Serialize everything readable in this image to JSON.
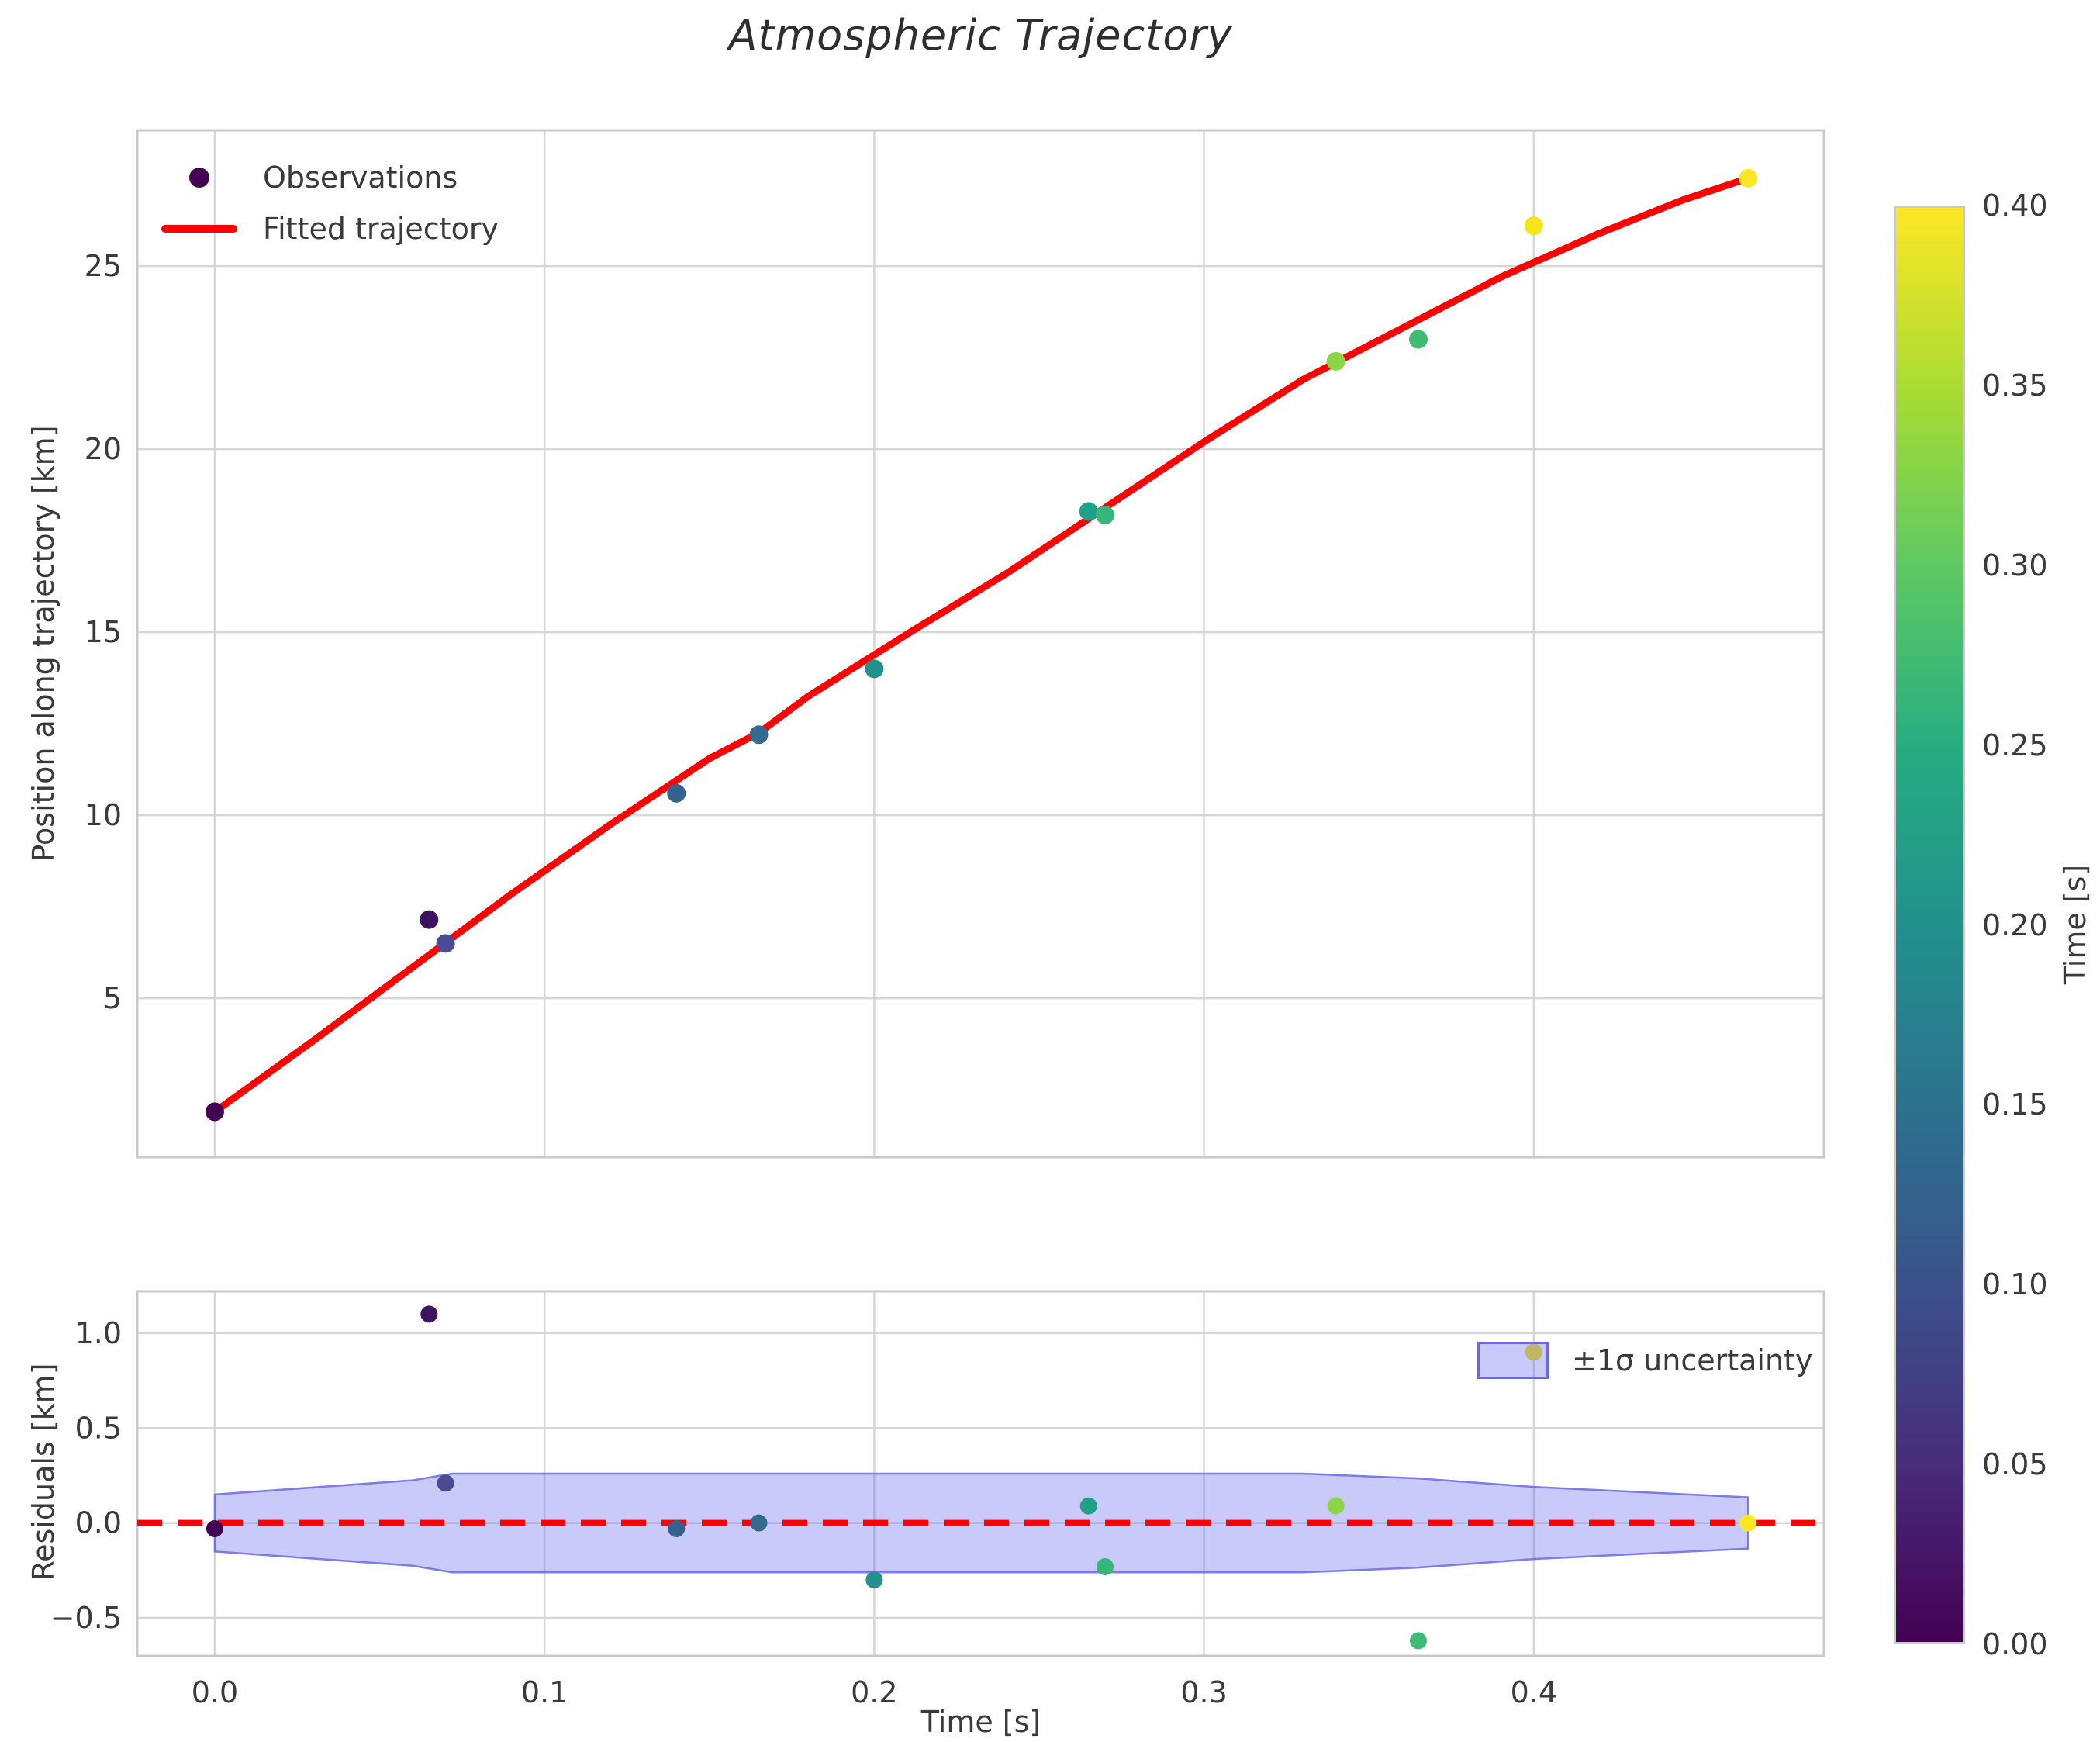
{
  "title": "Atmospheric Trajectory",
  "colors": {
    "fitted_line": "#ff0000",
    "band_fill": "#5a5af0",
    "band_edge": "#6868e8",
    "grid": "#d7d7d7",
    "spine": "#c9c9c9",
    "text": "#3a3a3a"
  },
  "chart_data": [
    {
      "id": "trajectory",
      "type": "scatter",
      "ylabel": "Position along trajectory [km]",
      "xlim": [
        -0.0235,
        0.488
      ],
      "ylim": [
        0.66,
        28.71
      ],
      "x_ticks": [
        0.0,
        0.1,
        0.2,
        0.3,
        0.4
      ],
      "x_tick_labels": [
        "0.0",
        "0.1",
        "0.2",
        "0.3",
        "0.4"
      ],
      "y_ticks": [
        5,
        10,
        15,
        20,
        25
      ],
      "y_tick_labels": [
        "5",
        "10",
        "15",
        "20",
        "25"
      ],
      "grid": true,
      "legend_position": "upper left",
      "legend": {
        "observations": "Observations",
        "fitted": "Fitted trajectory"
      },
      "observations": [
        {
          "t": 0.0,
          "position": 1.9,
          "color": "#440154"
        },
        {
          "t": 0.065,
          "position": 7.15,
          "color": "#3c1361"
        },
        {
          "t": 0.07,
          "position": 6.5,
          "color": "#4a4b93"
        },
        {
          "t": 0.14,
          "position": 10.6,
          "color": "#34618d"
        },
        {
          "t": 0.165,
          "position": 12.2,
          "color": "#336a8e"
        },
        {
          "t": 0.2,
          "position": 14.0,
          "color": "#23928c"
        },
        {
          "t": 0.265,
          "position": 18.3,
          "color": "#1fa088"
        },
        {
          "t": 0.27,
          "position": 18.2,
          "color": "#35b779"
        },
        {
          "t": 0.34,
          "position": 22.4,
          "color": "#8bd646"
        },
        {
          "t": 0.365,
          "position": 23.0,
          "color": "#3fbc73"
        },
        {
          "t": 0.4,
          "position": 26.1,
          "color": "#f2e51e"
        },
        {
          "t": 0.465,
          "position": 27.4,
          "color": "#fde725"
        }
      ],
      "fitted_curve": [
        [
          0.0,
          1.9
        ],
        [
          0.03,
          3.85
        ],
        [
          0.06,
          5.85
        ],
        [
          0.09,
          7.85
        ],
        [
          0.12,
          9.75
        ],
        [
          0.15,
          11.55
        ],
        [
          0.165,
          12.25
        ],
        [
          0.18,
          13.25
        ],
        [
          0.21,
          14.95
        ],
        [
          0.24,
          16.6
        ],
        [
          0.27,
          18.4
        ],
        [
          0.3,
          20.2
        ],
        [
          0.33,
          21.9
        ],
        [
          0.36,
          23.3
        ],
        [
          0.39,
          24.7
        ],
        [
          0.42,
          25.9
        ],
        [
          0.445,
          26.8
        ],
        [
          0.465,
          27.4
        ]
      ]
    },
    {
      "id": "residuals",
      "type": "scatter",
      "xlabel": "Time [s]",
      "ylabel": "Residuals [km]",
      "xlim": [
        -0.0235,
        0.488
      ],
      "ylim": [
        -0.7,
        1.22
      ],
      "y_ticks": [
        1.0,
        0.5,
        0.0,
        -0.5
      ],
      "y_tick_labels": [
        "1.0",
        "0.5",
        "0.0",
        "−0.5"
      ],
      "grid": true,
      "zero_line": {
        "value": 0.0,
        "color": "#ff0000",
        "style": "dashed"
      },
      "band": {
        "label": "±1σ uncertainty",
        "points": [
          [
            0.0,
            0.15
          ],
          [
            0.06,
            0.225
          ],
          [
            0.072,
            0.26
          ],
          [
            0.33,
            0.26
          ],
          [
            0.365,
            0.235
          ],
          [
            0.4,
            0.19
          ],
          [
            0.465,
            0.135
          ]
        ]
      },
      "points": [
        {
          "t": 0.0,
          "residual": -0.03,
          "color": "#440154"
        },
        {
          "t": 0.065,
          "residual": 1.1,
          "color": "#3c1361"
        },
        {
          "t": 0.07,
          "residual": 0.21,
          "color": "#4a4b93"
        },
        {
          "t": 0.14,
          "residual": -0.03,
          "color": "#34618d"
        },
        {
          "t": 0.165,
          "residual": 0.0,
          "color": "#336a8e"
        },
        {
          "t": 0.2,
          "residual": -0.3,
          "color": "#23928c"
        },
        {
          "t": 0.265,
          "residual": 0.09,
          "color": "#1fa088"
        },
        {
          "t": 0.27,
          "residual": -0.23,
          "color": "#35b779"
        },
        {
          "t": 0.34,
          "residual": 0.09,
          "color": "#8bd646"
        },
        {
          "t": 0.365,
          "residual": -0.62,
          "color": "#3fbc73"
        },
        {
          "t": 0.4,
          "residual": 0.9,
          "color": "#f2e51e"
        },
        {
          "t": 0.465,
          "residual": 0.0,
          "color": "#fde725"
        }
      ]
    }
  ],
  "colorbar": {
    "label": "Time [s]",
    "min": 0.0,
    "max": 0.4,
    "ticks": [
      0.0,
      0.05,
      0.1,
      0.15,
      0.2,
      0.25,
      0.3,
      0.35,
      0.4
    ],
    "tick_labels": [
      "0.00",
      "0.05",
      "0.10",
      "0.15",
      "0.20",
      "0.25",
      "0.30",
      "0.35",
      "0.40"
    ],
    "colormap": "viridis",
    "gradient_stops": [
      "#440154",
      "#472d7b",
      "#3b528b",
      "#2c728e",
      "#21918c",
      "#27ad81",
      "#5ec962",
      "#aadc32",
      "#fde725"
    ]
  }
}
